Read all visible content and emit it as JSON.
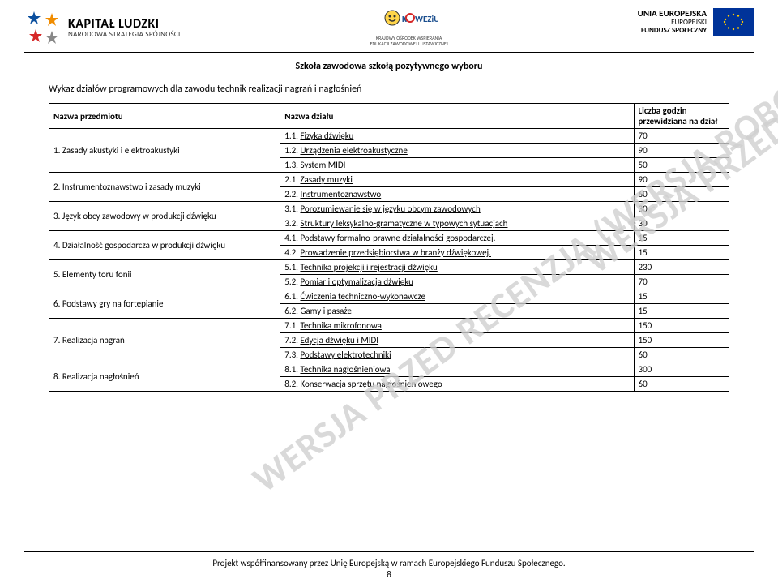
{
  "header": {
    "kapital_title": "KAPITAŁ LUDZKI",
    "kapital_sub": "NARODOWA STRATEGIA SPÓJNOŚCI",
    "koweziu_title": "KOWEZiU",
    "koweziu_sub1": "KRAJOWY OŚRODEK WSPIERANIA",
    "koweziu_sub2": "EDUKACJI ZAWODOWEJ I USTAWICZNEJ",
    "ue_title": "UNIA EUROPEJSKA",
    "ue_sub1": "EUROPEJSKI",
    "ue_sub2": "FUNDUSZ SPOŁECZNY"
  },
  "subtitle": "Szkoła zawodowa szkołą pozytywnego wyboru",
  "section_title": "Wykaz działów programowych dla zawodu technik realizacji nagrań i nagłośnień",
  "table": {
    "head_subject": "Nazwa przedmiotu",
    "head_section": "Nazwa działu",
    "head_hours_l1": "Liczba godzin",
    "head_hours_l2": "przewidziana na dział",
    "subjects": [
      {
        "label": "1.  Zasady akustyki i elektroakustyki",
        "rows": [
          {
            "n": "1.1.",
            "t": "Fizyka dźwięku",
            "h": "70"
          },
          {
            "n": "1.2.",
            "t": "Urządzenia elektroakustyczne",
            "h": "90"
          },
          {
            "n": "1.3.",
            "t": "System MIDI",
            "h": "50"
          }
        ]
      },
      {
        "label": "2.  Instrumentoznawstwo i zasady muzyki",
        "rows": [
          {
            "n": "2.1.",
            "t": "Zasady muzyki",
            "h": "90"
          },
          {
            "n": "2.2.",
            "t": "Instrumentoznawstwo",
            "h": "60"
          }
        ]
      },
      {
        "label": "3.  Język obcy zawodowy w produkcji dźwięku",
        "rows": [
          {
            "n": "3.1.",
            "t": "Porozumiewanie się w języku obcym zawodowych",
            "h": "30"
          },
          {
            "n": "3.2.",
            "t": "Struktury leksykalno-gramatyczne w typowych sytuacjach",
            "h": "30"
          }
        ]
      },
      {
        "label": "4.  Działalność gospodarcza w produkcji dźwięku",
        "rows": [
          {
            "n": "4.1.",
            "t": "Podstawy formalno-prawne działalności gospodarczej.",
            "h": "15"
          },
          {
            "n": "4.2.",
            "t": "Prowadzenie przedsiębiorstwa w branży dźwiękowej.",
            "h": "15"
          }
        ]
      },
      {
        "label": "5.  Elementy toru fonii",
        "rows": [
          {
            "n": "5.1.",
            "t": "Technika projekcji i rejestracji dźwięku",
            "h": "230"
          },
          {
            "n": "5.2.",
            "t": "Pomiar i optymalizacja dźwięku",
            "h": "70"
          }
        ]
      },
      {
        "label": "6.  Podstawy gry na fortepianie",
        "rows": [
          {
            "n": "6.1.",
            "t": "Ćwiczenia techniczno-wykonawcze",
            "h": "15"
          },
          {
            "n": "6.2.",
            "t": "Gamy i pasaże",
            "h": "15"
          }
        ]
      },
      {
        "label": "7.  Realizacja nagrań",
        "rows": [
          {
            "n": "7.1.",
            "t": "Technika mikrofonowa",
            "h": "150"
          },
          {
            "n": "7.2.",
            "t": "Edycja dźwięku i MIDI",
            "h": "150"
          },
          {
            "n": "7.3.",
            "t": "Podstawy elektrotechniki",
            "h": "60"
          }
        ]
      },
      {
        "label": "8.  Realizacja nagłośnień",
        "rows": [
          {
            "n": "8.1.",
            "t": "Technika nagłośnieniowa",
            "h": "300"
          },
          {
            "n": "8.2.",
            "t": "Konserwacja sprzętu nagłośnieniowego",
            "h": "60"
          }
        ]
      }
    ]
  },
  "watermark": "WERSJA PRZED RECENZJĄ (WERSJA ROBOCZA)",
  "footer": "Projekt współfinansowany przez Unię Europejską w ramach Europejskiego Funduszu Społecznego.",
  "page_num": "8",
  "colors": {
    "star_blue": "#0a4f9e",
    "star_orange": "#f08c00",
    "star_red": "#d62828",
    "eu_blue": "#003399",
    "eu_gold": "#ffcc00",
    "watermark": "#d0d0d0"
  }
}
